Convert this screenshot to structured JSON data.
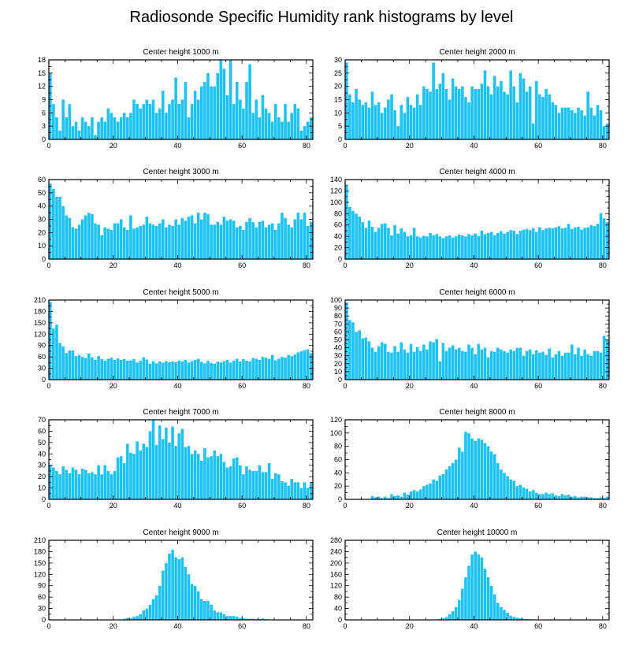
{
  "figure": {
    "title": "Radiosonde Specific Humidity rank histograms by level"
  },
  "colors": {
    "bar": "#1ec2f5",
    "bar_edge": "#ffffff",
    "axis": "#000000"
  },
  "chart_data": [
    {
      "type": "bar",
      "title": "Center height 1000 m",
      "xlim": [
        0,
        82
      ],
      "ylim": [
        0,
        18
      ],
      "xticks": [
        0,
        20,
        40,
        60,
        80
      ],
      "yticks": [
        0,
        3,
        6,
        9,
        12,
        15,
        18
      ],
      "values": [
        15,
        8,
        5,
        2,
        9,
        5,
        8,
        3,
        4,
        2,
        5,
        4,
        3,
        5,
        1,
        4,
        5,
        4,
        7,
        6,
        5,
        4,
        5,
        6,
        5,
        6,
        9,
        8,
        7,
        8,
        9,
        8,
        9,
        6,
        7,
        11,
        6,
        8,
        9,
        14,
        8,
        9,
        13,
        5,
        8,
        11,
        9,
        12,
        13,
        15,
        12,
        12,
        15,
        18,
        16,
        10,
        18,
        8,
        13,
        9,
        7,
        13,
        17,
        6,
        9,
        5,
        10,
        7,
        6,
        4,
        8,
        5,
        4,
        8,
        4,
        6,
        8,
        7,
        2,
        3,
        4,
        5
      ],
      "series_name": "counts"
    },
    {
      "type": "bar",
      "title": "Center height 2000 m",
      "xlim": [
        0,
        82
      ],
      "ylim": [
        0,
        30
      ],
      "xticks": [
        0,
        20,
        40,
        60,
        80
      ],
      "yticks": [
        0,
        5,
        10,
        15,
        20,
        25,
        30
      ],
      "values": [
        29,
        17,
        14,
        19,
        15,
        13,
        14,
        12,
        18,
        13,
        14,
        10,
        12,
        15,
        17,
        11,
        5,
        13,
        10,
        16,
        13,
        12,
        17,
        13,
        20,
        19,
        18,
        29,
        19,
        21,
        25,
        19,
        15,
        23,
        20,
        19,
        20,
        16,
        14,
        20,
        19,
        19,
        21,
        26,
        20,
        17,
        24,
        20,
        22,
        18,
        17,
        26,
        20,
        14,
        25,
        23,
        18,
        20,
        6,
        22,
        17,
        16,
        19,
        17,
        14,
        13,
        10,
        12,
        12,
        12,
        11,
        10,
        12,
        11,
        9,
        18,
        12,
        9,
        13,
        11,
        5,
        6
      ],
      "series_name": "counts"
    },
    {
      "type": "bar",
      "title": "Center height 3000 m",
      "xlim": [
        0,
        82
      ],
      "ylim": [
        0,
        60
      ],
      "xticks": [
        0,
        20,
        40,
        60,
        80
      ],
      "yticks": [
        0,
        10,
        20,
        30,
        40,
        50,
        60
      ],
      "values": [
        57,
        53,
        47,
        47,
        40,
        33,
        31,
        24,
        23,
        26,
        30,
        33,
        35,
        34,
        27,
        26,
        18,
        24,
        23,
        22,
        27,
        27,
        30,
        24,
        22,
        33,
        23,
        24,
        25,
        26,
        32,
        27,
        26,
        25,
        27,
        30,
        24,
        26,
        25,
        30,
        26,
        31,
        29,
        32,
        33,
        27,
        35,
        30,
        35,
        34,
        26,
        26,
        28,
        26,
        32,
        29,
        30,
        29,
        24,
        25,
        22,
        28,
        31,
        28,
        24,
        28,
        29,
        24,
        26,
        27,
        22,
        27,
        35,
        31,
        26,
        24,
        30,
        35,
        30,
        35,
        25,
        28
      ],
      "series_name": "counts"
    },
    {
      "type": "bar",
      "title": "Center height 4000 m",
      "xlim": [
        0,
        82
      ],
      "ylim": [
        0,
        140
      ],
      "xticks": [
        0,
        20,
        40,
        60,
        80
      ],
      "yticks": [
        0,
        20,
        40,
        60,
        80,
        100,
        120,
        140
      ],
      "values": [
        130,
        92,
        85,
        80,
        75,
        65,
        55,
        68,
        57,
        48,
        55,
        62,
        63,
        55,
        42,
        60,
        45,
        54,
        48,
        40,
        42,
        55,
        40,
        38,
        41,
        40,
        46,
        42,
        44,
        40,
        37,
        40,
        42,
        38,
        40,
        43,
        42,
        40,
        44,
        42,
        45,
        41,
        50,
        44,
        46,
        48,
        42,
        46,
        49,
        45,
        48,
        51,
        50,
        44,
        50,
        52,
        53,
        51,
        54,
        48,
        56,
        51,
        54,
        55,
        54,
        56,
        58,
        54,
        55,
        62,
        53,
        56,
        57,
        52,
        55,
        56,
        60,
        58,
        62,
        81,
        72,
        65
      ],
      "series_name": "counts"
    },
    {
      "type": "bar",
      "title": "Center height 5000 m",
      "xlim": [
        0,
        82
      ],
      "ylim": [
        0,
        210
      ],
      "xticks": [
        0,
        20,
        40,
        60,
        80
      ],
      "yticks": [
        0,
        30,
        60,
        90,
        120,
        150,
        180,
        210
      ],
      "values": [
        205,
        135,
        145,
        97,
        88,
        70,
        77,
        77,
        62,
        65,
        60,
        57,
        69,
        59,
        52,
        62,
        54,
        50,
        55,
        58,
        52,
        56,
        52,
        54,
        50,
        51,
        54,
        45,
        50,
        59,
        53,
        42,
        49,
        43,
        48,
        45,
        49,
        46,
        48,
        46,
        50,
        48,
        52,
        45,
        49,
        52,
        55,
        47,
        43,
        50,
        44,
        42,
        47,
        46,
        49,
        52,
        45,
        50,
        55,
        48,
        54,
        50,
        48,
        57,
        55,
        52,
        60,
        58,
        55,
        65,
        51,
        55,
        60,
        58,
        65,
        62,
        66,
        72,
        75,
        78,
        80,
        70
      ],
      "series_name": "counts"
    },
    {
      "type": "bar",
      "title": "Center height 6000 m",
      "xlim": [
        0,
        82
      ],
      "ylim": [
        0,
        100
      ],
      "xticks": [
        0,
        20,
        40,
        60,
        80
      ],
      "yticks": [
        0,
        10,
        20,
        30,
        40,
        50,
        60,
        70,
        80,
        90,
        100
      ],
      "values": [
        97,
        75,
        72,
        60,
        62,
        52,
        53,
        48,
        40,
        35,
        42,
        47,
        45,
        35,
        34,
        42,
        35,
        47,
        38,
        34,
        45,
        35,
        41,
        36,
        44,
        38,
        48,
        47,
        51,
        23,
        46,
        36,
        40,
        43,
        38,
        40,
        36,
        35,
        44,
        40,
        32,
        45,
        38,
        40,
        28,
        36,
        35,
        40,
        38,
        36,
        34,
        38,
        36,
        40,
        40,
        30,
        36,
        38,
        32,
        37,
        34,
        35,
        31,
        39,
        28,
        32,
        36,
        30,
        34,
        34,
        44,
        32,
        40,
        30,
        38,
        32,
        30,
        36,
        36,
        34,
        55,
        50
      ],
      "series_name": "counts"
    },
    {
      "type": "bar",
      "title": "Center height 7000 m",
      "xlim": [
        0,
        82
      ],
      "ylim": [
        0,
        70
      ],
      "xticks": [
        0,
        20,
        40,
        60,
        80
      ],
      "yticks": [
        0,
        10,
        20,
        30,
        40,
        50,
        60,
        70
      ],
      "values": [
        30,
        28,
        25,
        22,
        29,
        26,
        23,
        28,
        26,
        22,
        27,
        26,
        23,
        24,
        22,
        30,
        22,
        30,
        25,
        22,
        25,
        37,
        38,
        32,
        49,
        41,
        40,
        51,
        43,
        49,
        46,
        60,
        70,
        48,
        65,
        53,
        63,
        50,
        64,
        47,
        58,
        62,
        46,
        47,
        40,
        43,
        40,
        34,
        45,
        37,
        38,
        43,
        38,
        40,
        33,
        28,
        29,
        36,
        37,
        30,
        22,
        29,
        26,
        25,
        25,
        30,
        24,
        24,
        32,
        18,
        23,
        22,
        16,
        15,
        12,
        18,
        15,
        15,
        10,
        15,
        10,
        15
      ],
      "series_name": "counts"
    },
    {
      "type": "bar",
      "title": "Center height 8000 m",
      "xlim": [
        0,
        82
      ],
      "ylim": [
        0,
        120
      ],
      "xticks": [
        0,
        20,
        40,
        60,
        80
      ],
      "yticks": [
        0,
        20,
        40,
        60,
        80,
        100,
        120
      ],
      "values": [
        0,
        0,
        0,
        0,
        0,
        0,
        0,
        0,
        5,
        3,
        4,
        2,
        4,
        2,
        8,
        5,
        6,
        4,
        10,
        7,
        12,
        14,
        12,
        15,
        20,
        22,
        24,
        30,
        28,
        36,
        38,
        45,
        50,
        55,
        60,
        78,
        72,
        102,
        100,
        92,
        88,
        92,
        90,
        85,
        80,
        72,
        68,
        55,
        45,
        40,
        35,
        30,
        28,
        20,
        22,
        18,
        16,
        12,
        14,
        10,
        8,
        8,
        10,
        8,
        9,
        6,
        5,
        8,
        6,
        7,
        4,
        5,
        3,
        4,
        4,
        3,
        3,
        2,
        2,
        3,
        2,
        4
      ],
      "series_name": "counts"
    },
    {
      "type": "bar",
      "title": "Center height 9000 m",
      "xlim": [
        0,
        82
      ],
      "ylim": [
        0,
        210
      ],
      "xticks": [
        0,
        20,
        40,
        60,
        80
      ],
      "yticks": [
        0,
        30,
        60,
        90,
        120,
        150,
        180,
        210
      ],
      "values": [
        0,
        0,
        0,
        0,
        0,
        0,
        0,
        0,
        0,
        0,
        0,
        0,
        0,
        0,
        0,
        0,
        0,
        0,
        0,
        0,
        0,
        0,
        1,
        3,
        5,
        4,
        8,
        10,
        15,
        25,
        30,
        40,
        55,
        65,
        90,
        130,
        150,
        175,
        185,
        165,
        160,
        165,
        140,
        120,
        95,
        90,
        75,
        55,
        50,
        50,
        40,
        25,
        20,
        20,
        15,
        10,
        10,
        10,
        8,
        5,
        4,
        3,
        3,
        3,
        2,
        2,
        4,
        2,
        1,
        1,
        1,
        0,
        0,
        0,
        0,
        0,
        0,
        0,
        0,
        0,
        0,
        0
      ],
      "series_name": "counts"
    },
    {
      "type": "bar",
      "title": "Center height 10000 m",
      "xlim": [
        0,
        82
      ],
      "ylim": [
        0,
        280
      ],
      "xticks": [
        0,
        20,
        40,
        60,
        80
      ],
      "yticks": [
        0,
        40,
        80,
        120,
        160,
        200,
        240,
        280
      ],
      "values": [
        0,
        0,
        0,
        0,
        0,
        0,
        0,
        0,
        0,
        0,
        0,
        0,
        0,
        0,
        0,
        0,
        0,
        0,
        0,
        0,
        0,
        0,
        0,
        0,
        0,
        0,
        0,
        0,
        0,
        3,
        5,
        10,
        20,
        30,
        45,
        70,
        110,
        150,
        190,
        230,
        240,
        230,
        220,
        180,
        150,
        120,
        90,
        60,
        45,
        35,
        25,
        15,
        10,
        8,
        5,
        3,
        3,
        2,
        0,
        0,
        0,
        0,
        0,
        0,
        0,
        0,
        0,
        0,
        0,
        0,
        0,
        0,
        0,
        0,
        0,
        0,
        0,
        0,
        0,
        0,
        0,
        0
      ],
      "series_name": "counts"
    }
  ]
}
